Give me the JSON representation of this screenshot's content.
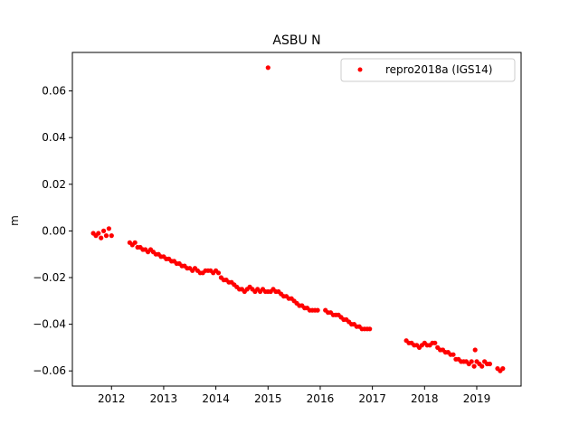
{
  "chart_data": {
    "type": "scatter",
    "title": "ASBU N",
    "xlabel": "",
    "ylabel": "m",
    "xlim": [
      2011.25,
      2019.85
    ],
    "ylim": [
      -0.0665,
      0.0765
    ],
    "x_ticks": [
      2012,
      2013,
      2014,
      2015,
      2016,
      2017,
      2018,
      2019
    ],
    "x_tick_labels": [
      "2012",
      "2013",
      "2014",
      "2015",
      "2016",
      "2017",
      "2018",
      "2019"
    ],
    "y_ticks": [
      -0.06,
      -0.04,
      -0.02,
      0.0,
      0.02,
      0.04,
      0.06
    ],
    "y_tick_labels": [
      "−0.06",
      "−0.04",
      "−0.02",
      "0.00",
      "0.02",
      "0.04",
      "0.06"
    ],
    "grid": false,
    "legend_position": "top-right",
    "series": [
      {
        "name": "repro2018a (IGS14)",
        "color": "#ff0000",
        "marker": "circle",
        "x": [
          2011.65,
          2011.7,
          2011.75,
          2011.8,
          2011.85,
          2011.9,
          2011.95,
          2012.0,
          2012.35,
          2012.4,
          2012.45,
          2012.5,
          2012.55,
          2012.6,
          2012.65,
          2012.7,
          2012.75,
          2012.8,
          2012.85,
          2012.9,
          2012.95,
          2013.0,
          2013.05,
          2013.1,
          2013.15,
          2013.2,
          2013.25,
          2013.3,
          2013.35,
          2013.4,
          2013.45,
          2013.5,
          2013.55,
          2013.6,
          2013.65,
          2013.7,
          2013.75,
          2013.8,
          2013.85,
          2013.9,
          2013.95,
          2014.0,
          2014.05,
          2014.1,
          2014.15,
          2014.2,
          2014.25,
          2014.3,
          2014.35,
          2014.4,
          2014.45,
          2014.5,
          2014.55,
          2014.6,
          2014.65,
          2014.7,
          2014.75,
          2014.8,
          2014.85,
          2014.9,
          2014.95,
          2015.0,
          2015.05,
          2015.1,
          2015.15,
          2015.2,
          2015.25,
          2015.3,
          2015.35,
          2015.4,
          2015.45,
          2015.5,
          2015.55,
          2015.6,
          2015.65,
          2015.7,
          2015.75,
          2015.8,
          2015.85,
          2015.9,
          2015.95,
          2016.1,
          2016.15,
          2016.2,
          2016.25,
          2016.3,
          2016.35,
          2016.4,
          2016.45,
          2016.5,
          2016.55,
          2016.6,
          2016.65,
          2016.7,
          2016.75,
          2016.8,
          2016.85,
          2016.9,
          2016.95,
          2017.65,
          2017.7,
          2017.75,
          2017.8,
          2017.85,
          2017.9,
          2017.95,
          2018.0,
          2018.05,
          2018.1,
          2018.15,
          2018.2,
          2018.25,
          2018.3,
          2018.35,
          2018.4,
          2018.45,
          2018.5,
          2018.55,
          2018.6,
          2018.65,
          2018.7,
          2018.75,
          2018.8,
          2018.85,
          2018.9,
          2018.95,
          2019.0,
          2019.05,
          2019.1,
          2019.15,
          2019.2,
          2019.25,
          2019.4,
          2019.45,
          2019.5,
          2015.0,
          2018.97
        ],
        "y": [
          -0.001,
          -0.002,
          -0.001,
          -0.003,
          0.0,
          -0.002,
          0.001,
          -0.002,
          -0.005,
          -0.006,
          -0.005,
          -0.007,
          -0.007,
          -0.008,
          -0.008,
          -0.009,
          -0.008,
          -0.009,
          -0.01,
          -0.01,
          -0.011,
          -0.011,
          -0.012,
          -0.012,
          -0.013,
          -0.013,
          -0.014,
          -0.014,
          -0.015,
          -0.015,
          -0.016,
          -0.016,
          -0.017,
          -0.016,
          -0.017,
          -0.018,
          -0.018,
          -0.017,
          -0.017,
          -0.017,
          -0.018,
          -0.017,
          -0.018,
          -0.02,
          -0.021,
          -0.021,
          -0.022,
          -0.022,
          -0.023,
          -0.024,
          -0.025,
          -0.025,
          -0.026,
          -0.025,
          -0.024,
          -0.025,
          -0.026,
          -0.025,
          -0.026,
          -0.025,
          -0.026,
          -0.026,
          -0.026,
          -0.025,
          -0.026,
          -0.026,
          -0.027,
          -0.028,
          -0.028,
          -0.029,
          -0.029,
          -0.03,
          -0.031,
          -0.032,
          -0.032,
          -0.033,
          -0.033,
          -0.034,
          -0.034,
          -0.034,
          -0.034,
          -0.034,
          -0.035,
          -0.035,
          -0.036,
          -0.036,
          -0.036,
          -0.037,
          -0.038,
          -0.038,
          -0.039,
          -0.04,
          -0.04,
          -0.041,
          -0.041,
          -0.042,
          -0.042,
          -0.042,
          -0.042,
          -0.047,
          -0.048,
          -0.048,
          -0.049,
          -0.049,
          -0.05,
          -0.049,
          -0.048,
          -0.049,
          -0.049,
          -0.048,
          -0.048,
          -0.05,
          -0.051,
          -0.051,
          -0.052,
          -0.052,
          -0.053,
          -0.053,
          -0.055,
          -0.055,
          -0.056,
          -0.056,
          -0.056,
          -0.057,
          -0.056,
          -0.058,
          -0.056,
          -0.057,
          -0.058,
          -0.056,
          -0.057,
          -0.057,
          -0.059,
          -0.06,
          -0.059,
          0.07,
          -0.051
        ]
      }
    ]
  }
}
